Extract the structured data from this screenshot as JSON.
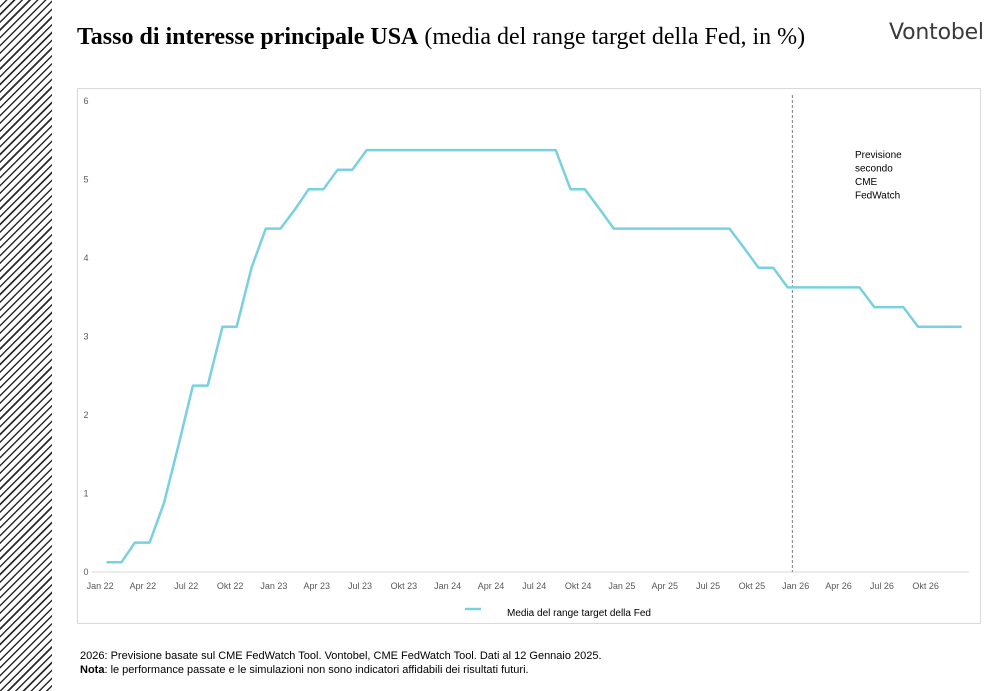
{
  "header": {
    "title_main": "Tasso di interesse principale USA",
    "title_sub": "(media del range target della Fed, in %)",
    "logo": "Vontobel"
  },
  "footer": {
    "note1": "2026: Previsione basate sul CME FedWatch Tool. Vontobel, CME FedWatch Tool. Dati al 12 Gennaio 2025.",
    "note2_bold": "Nota",
    "note2_rest": ": le performance passate e le simulazioni non sono indicatori affidabili dei risultati futuri."
  },
  "chart_data": {
    "type": "line",
    "title": "Tasso di interesse principale USA (media del range target della Fed, in %)",
    "xlabel": "",
    "ylabel": "",
    "ylim": [
      0,
      6
    ],
    "yticks": [
      "0",
      "1",
      "2",
      "3",
      "4",
      "5",
      "6"
    ],
    "x_tick_labels": [
      "Jan 22",
      "Apr 22",
      "Jul 22",
      "Okt 22",
      "Jan 23",
      "Apr 23",
      "Jul 23",
      "Okt 23",
      "Jan 24",
      "Apr 24",
      "Jul 24",
      "Okt 24",
      "Jan 25",
      "Apr 25",
      "Jul 25",
      "Okt 25",
      "Jan 26",
      "Apr 26",
      "Jul 26",
      "Okt 26"
    ],
    "grid": false,
    "legend_position": "bottom-center",
    "color": "#79d0df",
    "annotation": {
      "text_lines": [
        "Previsione",
        "secondo",
        "CME",
        "FedWatch"
      ],
      "divider_x": "2025-12-25"
    },
    "series": [
      {
        "name": "Media del range target della Fed",
        "x": [
          "2022-01",
          "2022-02",
          "2022-03",
          "2022-04",
          "2022-05",
          "2022-06",
          "2022-07",
          "2022-08",
          "2022-09",
          "2022-10",
          "2022-11",
          "2022-12",
          "2023-01",
          "2023-02",
          "2023-03",
          "2023-04",
          "2023-05",
          "2023-06",
          "2023-07",
          "2023-08",
          "2023-09",
          "2023-10",
          "2023-11",
          "2023-12",
          "2024-01",
          "2024-02",
          "2024-03",
          "2024-04",
          "2024-05",
          "2024-06",
          "2024-07",
          "2024-08",
          "2024-09",
          "2024-10",
          "2024-11",
          "2024-12",
          "2025-01",
          "2025-02",
          "2025-03",
          "2025-04",
          "2025-05",
          "2025-06",
          "2025-07",
          "2025-08",
          "2025-09",
          "2025-10",
          "2025-11",
          "2025-12",
          "2026-01",
          "2026-02",
          "2026-03",
          "2026-04",
          "2026-05",
          "2026-06",
          "2026-07",
          "2026-08",
          "2026-09",
          "2026-10",
          "2026-11",
          "2026-12"
        ],
        "values": [
          0.125,
          0.125,
          0.375,
          0.375,
          0.875,
          1.625,
          2.375,
          2.375,
          3.125,
          3.125,
          3.875,
          4.375,
          4.375,
          4.625,
          4.875,
          4.875,
          5.125,
          5.125,
          5.375,
          5.375,
          5.375,
          5.375,
          5.375,
          5.375,
          5.375,
          5.375,
          5.375,
          5.375,
          5.375,
          5.375,
          5.375,
          5.375,
          4.875,
          4.875,
          4.625,
          4.375,
          4.375,
          4.375,
          4.375,
          4.375,
          4.375,
          4.375,
          4.375,
          4.375,
          4.125,
          3.875,
          3.875,
          3.625,
          3.625,
          3.625,
          3.625,
          3.625,
          3.625,
          3.375,
          3.375,
          3.375,
          3.125,
          3.125,
          3.125,
          3.125
        ]
      }
    ]
  }
}
